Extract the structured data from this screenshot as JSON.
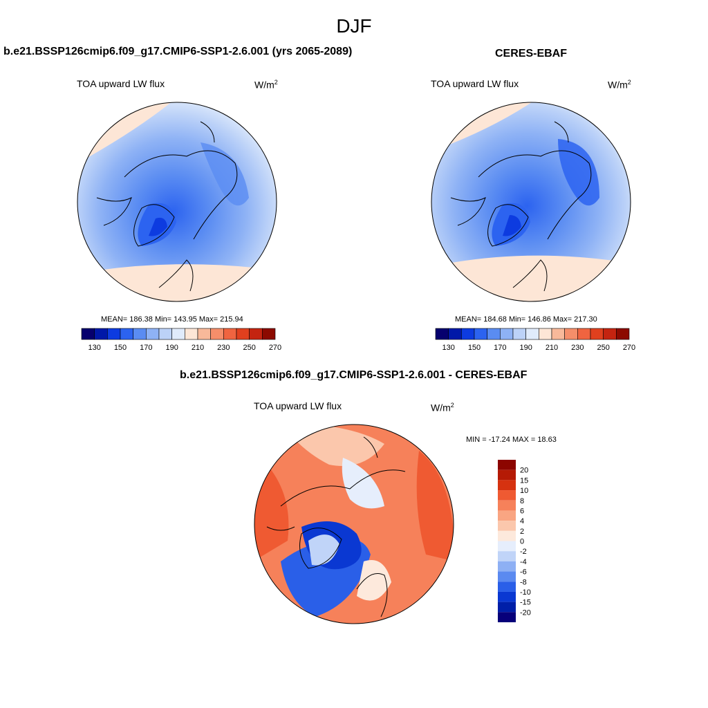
{
  "season": "DJF",
  "palette": {
    "abs": [
      "#06006e",
      "#0018a8",
      "#0d3be0",
      "#2c63f0",
      "#5a8cf2",
      "#8eb2f5",
      "#bcd2f8",
      "#e0ebfb",
      "#fde6d6",
      "#f8b99a",
      "#f58e6a",
      "#f06440",
      "#e0401e",
      "#c42410",
      "#8c0a00"
    ],
    "diff": [
      "#07007a",
      "#001fa8",
      "#0a38d2",
      "#2a5fe8",
      "#5b8af0",
      "#8eb0f4",
      "#c0d4f8",
      "#e6eefc",
      "#fde9dc",
      "#fbc7ac",
      "#f9a582",
      "#f6815a",
      "#ef5a32",
      "#d63210",
      "#b51a05",
      "#8c0500"
    ]
  },
  "panels": [
    {
      "title": "b.e21.BSSP126cmip6.f09_g17.CMIP6-SSP1-2.6.001 (yrs 2065-2089)",
      "variable": "TOA upward LW flux",
      "units_base": "W/m",
      "units_exp": "2",
      "stats": "MEAN= 186.38  Min= 143.95  Max= 215.94",
      "colorbar_ticks": [
        "130",
        "150",
        "170",
        "190",
        "210",
        "230",
        "250",
        "270"
      ]
    },
    {
      "title": "CERES-EBAF",
      "variable": "TOA upward LW flux",
      "units_base": "W/m",
      "units_exp": "2",
      "stats": "MEAN= 184.68  Min= 146.86  Max= 217.30",
      "colorbar_ticks": [
        "130",
        "150",
        "170",
        "190",
        "210",
        "230",
        "250",
        "270"
      ]
    },
    {
      "title": "b.e21.BSSP126cmip6.f09_g17.CMIP6-SSP1-2.6.001 - CERES-EBAF",
      "variable": "TOA upward LW flux",
      "units_base": "W/m",
      "units_exp": "2",
      "stats": "MIN = -17.24 MAX =  18.63",
      "colorbar_ticks": [
        "20",
        "15",
        "10",
        "8",
        "6",
        "4",
        "2",
        "0",
        "-2",
        "-4",
        "-6",
        "-8",
        "-10",
        "-15",
        "-20"
      ]
    }
  ]
}
